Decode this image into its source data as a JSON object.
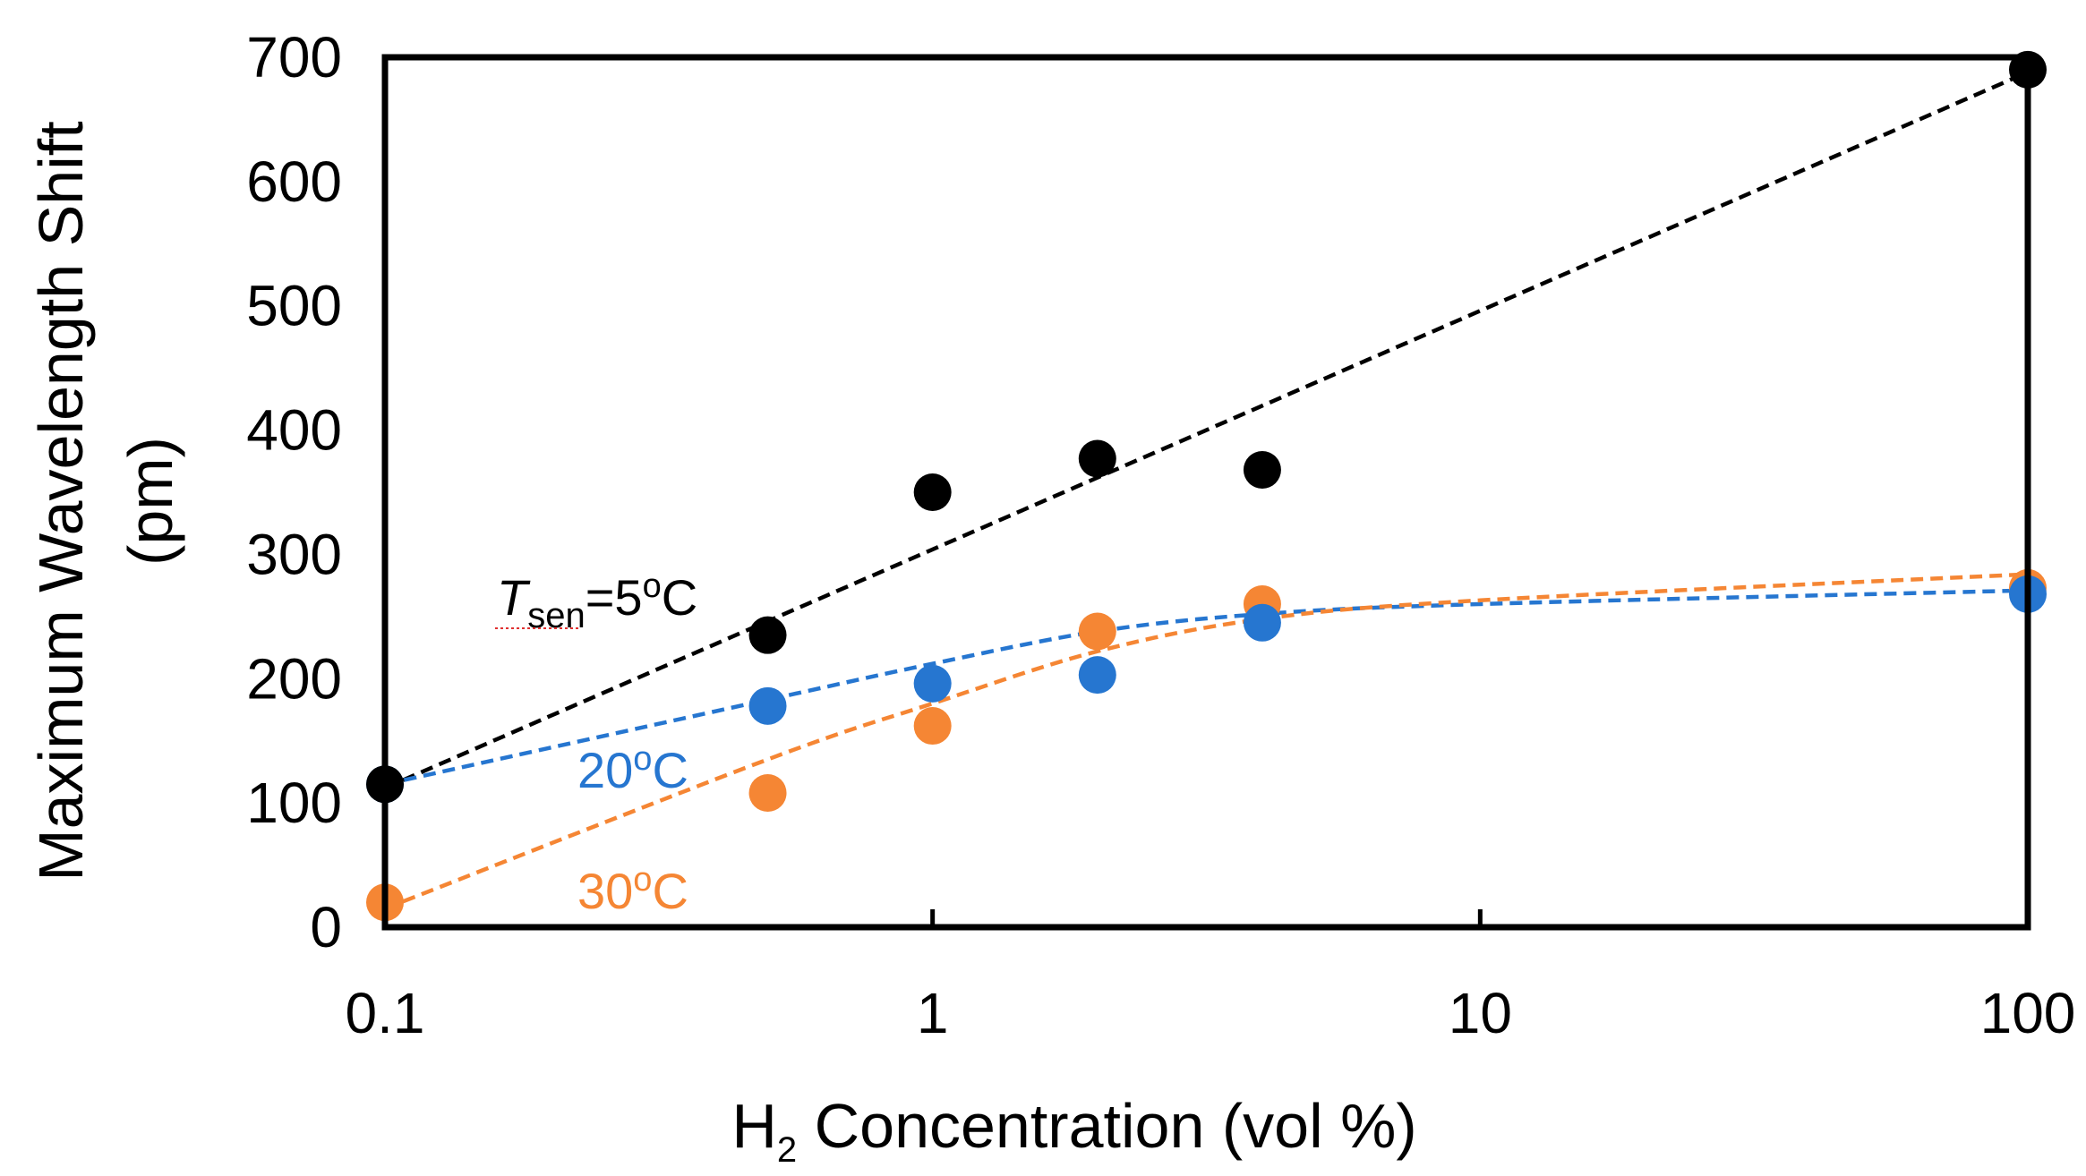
{
  "chart_data": {
    "type": "scatter",
    "title": "",
    "xlabel_main": "H",
    "xlabel_sub": "2",
    "xlabel_rest": " Concentration (vol %)",
    "ylabel_line1": "Maximum Wavelength Shift",
    "ylabel_line2": "(pm)",
    "xscale": "log",
    "xlim": [
      0.1,
      100
    ],
    "ylim": [
      0,
      700
    ],
    "grid": false,
    "x_ticks": [
      0.1,
      1,
      10,
      100
    ],
    "x_tick_labels": [
      "0.1",
      "1",
      "10",
      "100"
    ],
    "y_ticks": [
      0,
      100,
      200,
      300,
      400,
      500,
      600,
      700
    ],
    "y_tick_labels": [
      "0",
      "100",
      "200",
      "300",
      "400",
      "500",
      "600",
      "700"
    ],
    "series": [
      {
        "name": "5oC",
        "color": "#000000",
        "x": [
          0.1,
          0.5,
          1,
          2,
          4,
          100
        ],
        "y": [
          115,
          235,
          350,
          377,
          368,
          690
        ],
        "trend_x": [
          0.1,
          100
        ],
        "trend_y": [
          112,
          688
        ]
      },
      {
        "name": "20oC",
        "color": "#2676d0",
        "x": [
          0.1,
          0.5,
          1,
          2,
          4,
          100
        ],
        "y": [
          115,
          178,
          196,
          203,
          245,
          268
        ],
        "trend_x": [
          0.1,
          0.5,
          1,
          2,
          4,
          10,
          100
        ],
        "trend_y": [
          115,
          183,
          212,
          238,
          252,
          260,
          271
        ]
      },
      {
        "name": "30oC",
        "color": "#f58634",
        "x": [
          0.1,
          0.5,
          1,
          2,
          4,
          100
        ],
        "y": [
          20,
          108,
          162,
          238,
          260,
          273
        ],
        "trend_x": [
          0.1,
          0.5,
          1,
          2,
          4,
          10,
          100
        ],
        "trend_y": [
          15,
          135,
          180,
          222,
          248,
          263,
          284
        ]
      }
    ],
    "annotations": {
      "black": {
        "italic": "T",
        "sub": "sen",
        "rest_a": "=5",
        "sup": "o",
        "rest_b": "C",
        "color": "#000000"
      },
      "blue": {
        "main": "20",
        "sup": "o",
        "rest": "C",
        "color": "#2676d0"
      },
      "orange": {
        "main": "30",
        "sup": "o",
        "rest": "C",
        "color": "#f58634"
      }
    }
  }
}
